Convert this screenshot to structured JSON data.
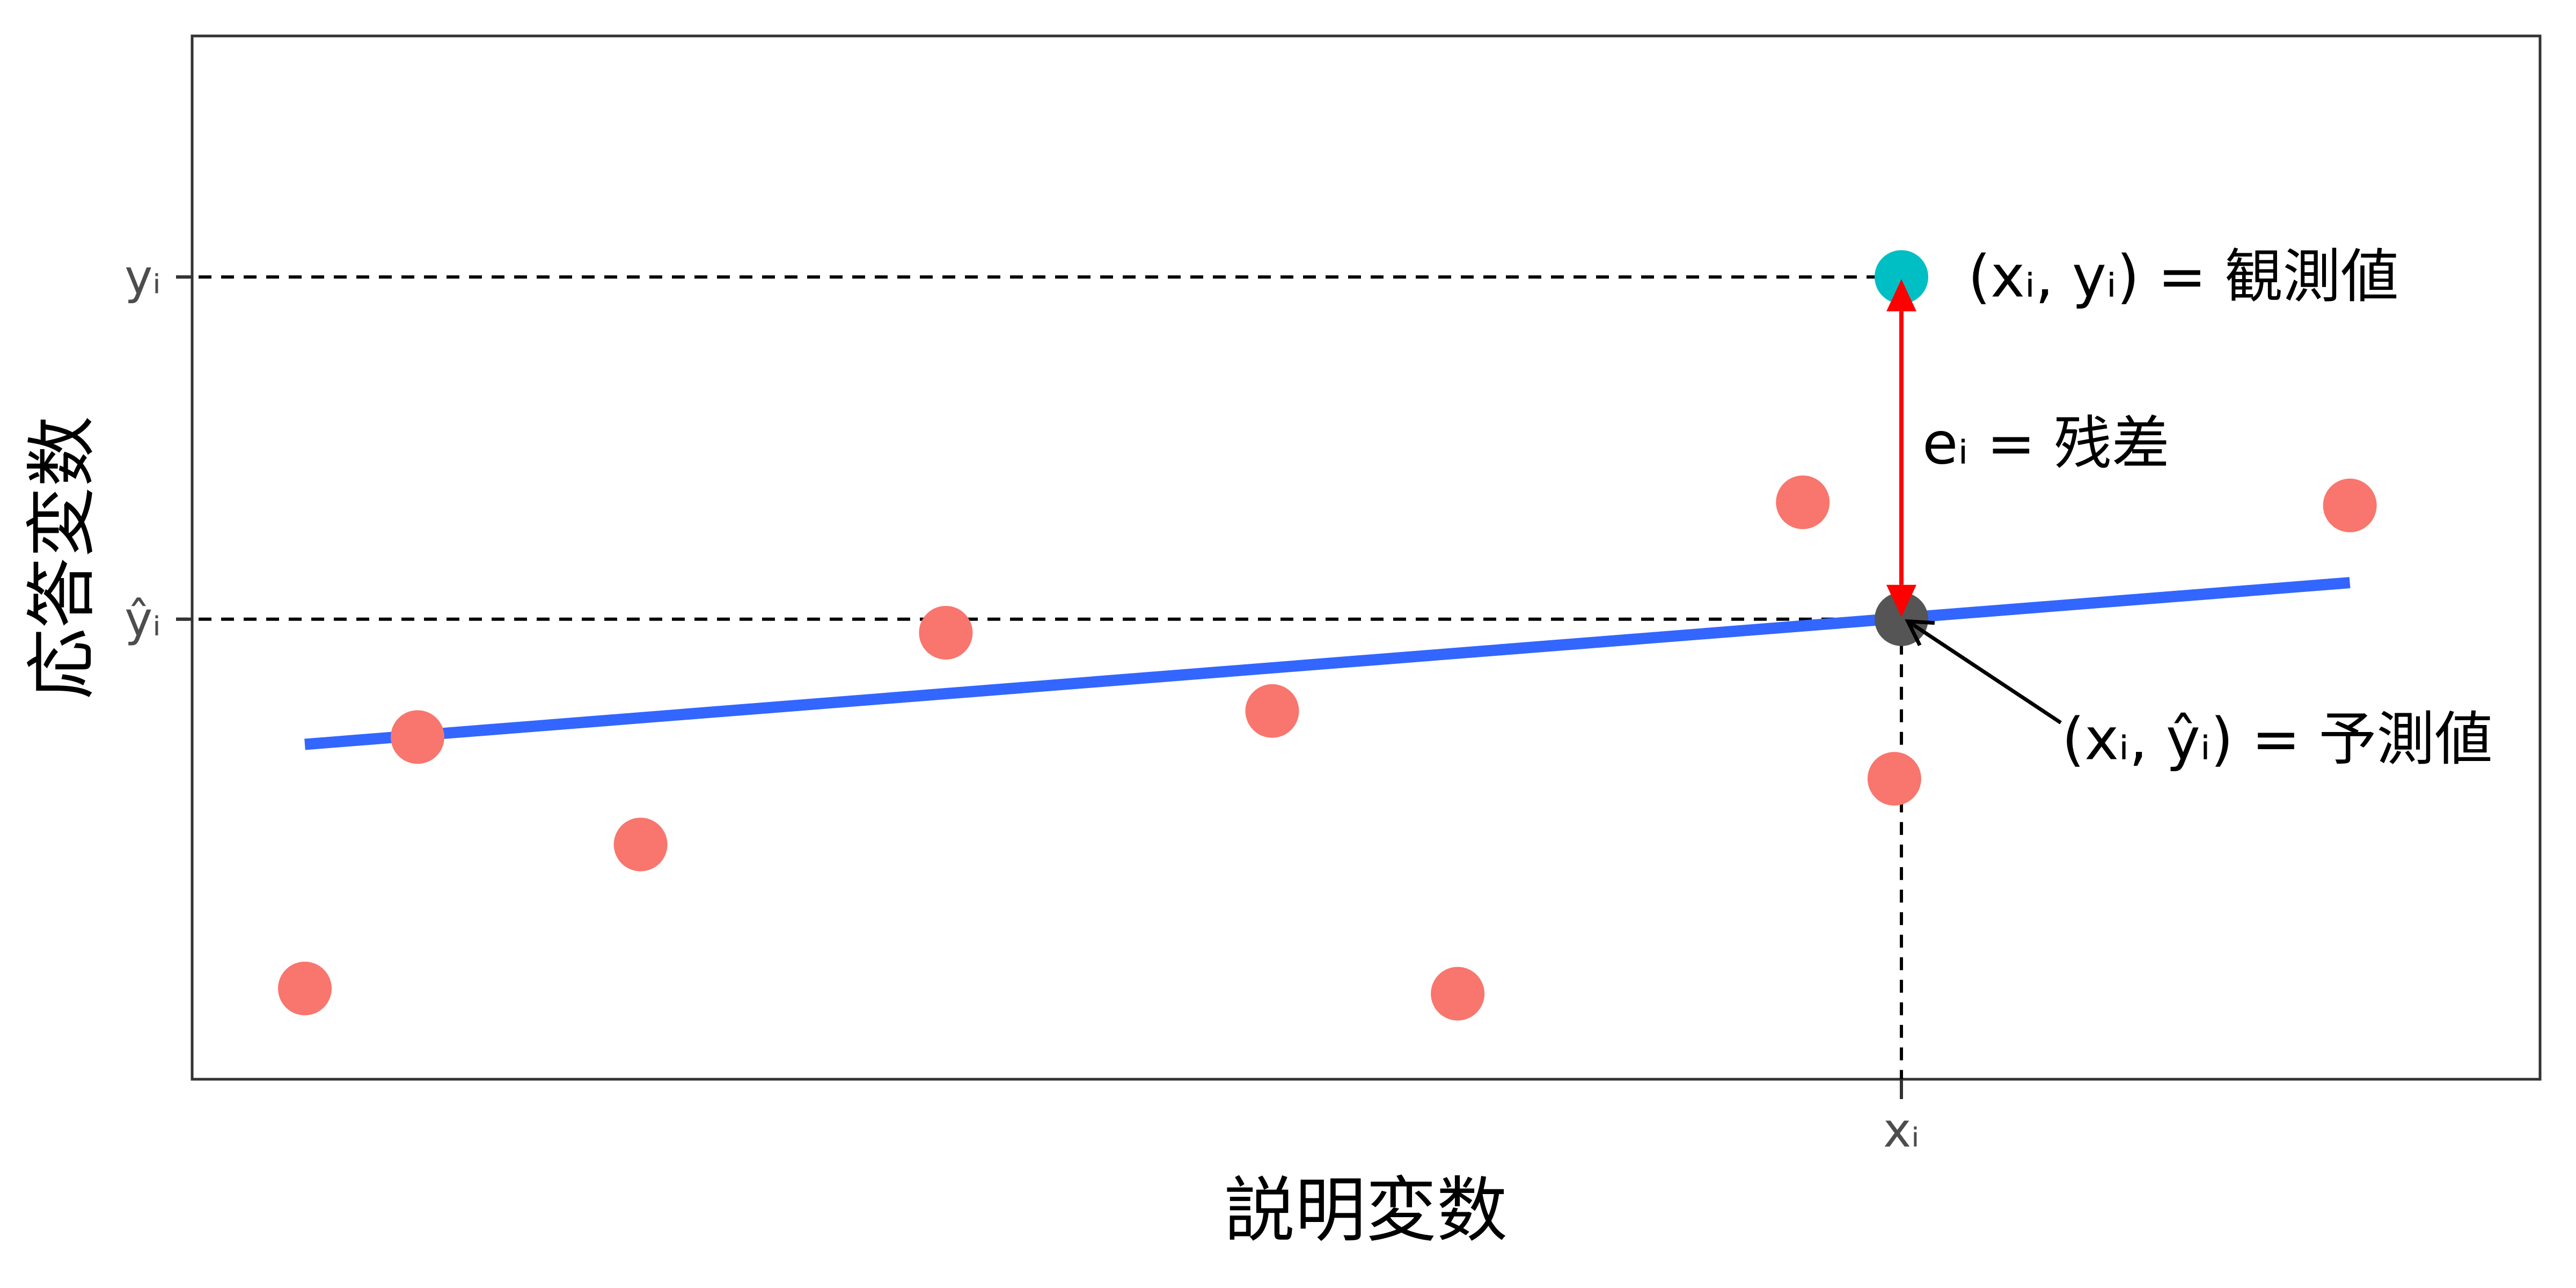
{
  "chart_data": {
    "type": "scatter",
    "xlabel": "説明変数",
    "ylabel": "応答変数",
    "xlim": [
      0,
      10
    ],
    "ylim": [
      0,
      10
    ],
    "grid": false,
    "show_legend": false,
    "x_ticks": [
      {
        "value": 7.28,
        "label": "xᵢ"
      }
    ],
    "y_ticks": [
      {
        "value": 7.69,
        "label": "yᵢ"
      },
      {
        "value": 4.41,
        "label": "ŷᵢ"
      }
    ],
    "points": [
      {
        "x": 0.48,
        "y": 0.87
      },
      {
        "x": 0.96,
        "y": 3.28
      },
      {
        "x": 1.91,
        "y": 2.25
      },
      {
        "x": 3.21,
        "y": 4.28
      },
      {
        "x": 4.6,
        "y": 3.53
      },
      {
        "x": 5.39,
        "y": 0.82
      },
      {
        "x": 6.86,
        "y": 5.53
      },
      {
        "x": 7.25,
        "y": 2.88
      },
      {
        "x": 9.19,
        "y": 5.5
      }
    ],
    "observed_point": {
      "x": 7.28,
      "y": 7.69
    },
    "predicted_point": {
      "x": 7.28,
      "y": 4.41
    },
    "regression_line": {
      "x": [
        0.48,
        9.19
      ],
      "y": [
        3.21,
        4.76
      ]
    },
    "annotations": {
      "observed": "(xᵢ, yᵢ) = 観測値",
      "residual": "eᵢ = 残差",
      "predicted": "(xᵢ, ŷᵢ) = 予測値"
    },
    "colors": {
      "points": "#F8766D",
      "observed": "#00BFC4",
      "predicted": "#555555",
      "line": "#3366FF",
      "residual_arrow": "#FF0000",
      "guide": "#000000",
      "axis": "#333333"
    }
  }
}
